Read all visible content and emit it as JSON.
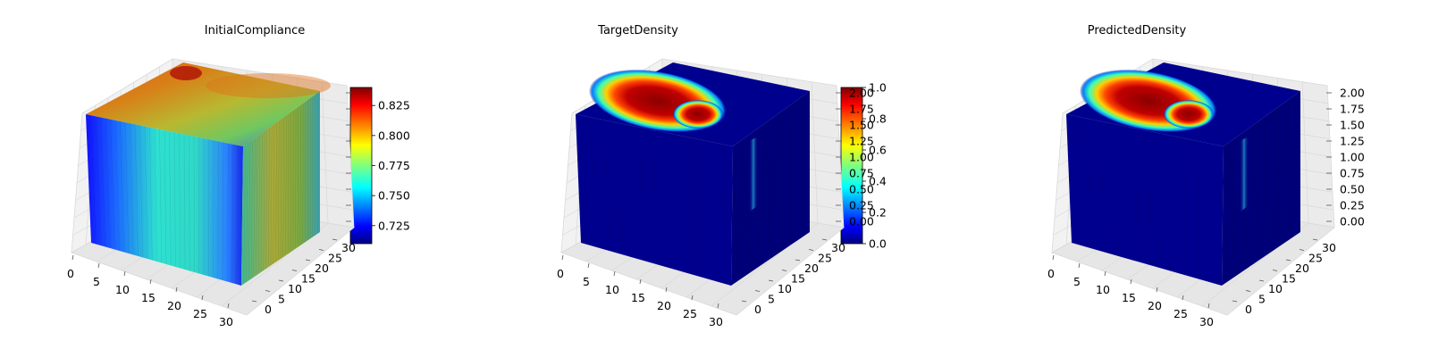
{
  "chart_data": [
    {
      "type": "3d-voxel",
      "title": "InitialCompliance",
      "colormap": "jet",
      "colorbar": {
        "range": [
          0.71,
          0.84
        ],
        "ticks": [
          0.725,
          0.75,
          0.775,
          0.8,
          0.825
        ],
        "tick_labels": [
          "0.725",
          "0.750",
          "0.775",
          "0.800",
          "0.825"
        ]
      },
      "x_ticks": [
        "0",
        "5",
        "10",
        "15",
        "20",
        "25",
        "30"
      ],
      "y_ticks": [
        "0",
        "5",
        "10",
        "15",
        "20",
        "25",
        "30"
      ],
      "z_ticks": [],
      "grid": "on",
      "surfaces": {
        "top": "mostly orange-red with a darker red spot near the back-left, yellow-green band toward front, blue toward right edge",
        "front": "vertical bands: blue at left, cyan-green in middle, blue at right",
        "right": "green-yellow with olive tones"
      }
    },
    {
      "type": "3d-voxel",
      "title": "TargetDensity",
      "colormap": "jet",
      "colorbar": {
        "range": [
          0.0,
          1.0
        ],
        "ticks": [
          0.0,
          0.2,
          0.4,
          0.6,
          0.8,
          1.0
        ],
        "tick_labels": [
          "0.0",
          "0.2",
          "0.4",
          "0.6",
          "0.8",
          "1.0"
        ]
      },
      "x_ticks": [
        "0",
        "5",
        "10",
        "15",
        "20",
        "25",
        "30"
      ],
      "y_ticks": [
        "0",
        "5",
        "10",
        "15",
        "20",
        "25",
        "30"
      ],
      "z_ticks": [
        "0.00",
        "0.25",
        "0.50",
        "0.75",
        "1.00",
        "1.25",
        "1.50",
        "1.75",
        "2.00"
      ],
      "grid": "on",
      "surfaces": {
        "top": "dark red blob toward back-left ringed by yellow/cyan, rest dark blue",
        "front": "dark blue",
        "right": "dark blue with a faint cyan streak"
      }
    },
    {
      "type": "3d-voxel",
      "title": "PredictedDensity",
      "colormap": "jet",
      "colorbar": {
        "range": [
          0.0,
          1.0
        ],
        "ticks": [
          0.0,
          0.2,
          0.4,
          0.6,
          0.8,
          1.0
        ],
        "tick_labels": [
          "0.0",
          "0.2",
          "0.4",
          "0.6",
          "0.8",
          "1.0"
        ]
      },
      "x_ticks": [
        "0",
        "5",
        "10",
        "15",
        "20",
        "25",
        "30"
      ],
      "y_ticks": [
        "0",
        "5",
        "10",
        "15",
        "20",
        "25",
        "30"
      ],
      "z_ticks": [
        "0.00",
        "0.25",
        "0.50",
        "0.75",
        "1.00",
        "1.25",
        "1.50",
        "1.75",
        "2.00"
      ],
      "grid": "on",
      "surfaces": {
        "top": "dark red blob toward back-left ringed by yellow/cyan, rest dark blue",
        "front": "dark blue",
        "right": "dark blue with a faint cyan streak"
      }
    }
  ],
  "colors": {
    "jet": [
      "#00007f",
      "#0000ff",
      "#007fff",
      "#00ffff",
      "#7fff7f",
      "#ffff00",
      "#ff7f00",
      "#ff0000",
      "#7f0000"
    ],
    "pane": "#f2f2f2",
    "grid": "#d9d9d9",
    "edge": "#555555"
  }
}
